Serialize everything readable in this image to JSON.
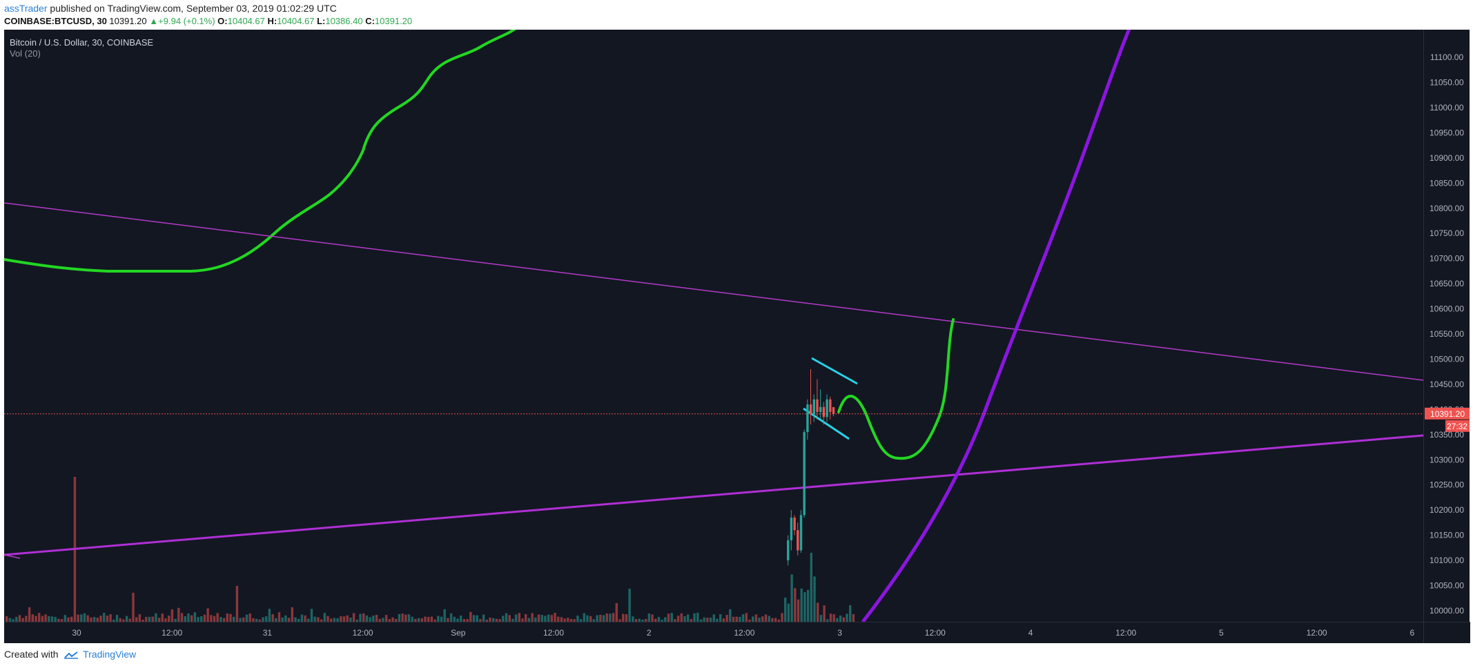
{
  "header": {
    "author": "assTrader",
    "published": "published on TradingView.com, September 03, 2019 01:02:29 UTC",
    "symbol": "COINBASE:BTCUSD, 30",
    "last": "10391.20",
    "change": "+9.94 (+0.1%)",
    "o_label": "O:",
    "o_value": "10404.67",
    "h_label": "H:",
    "h_value": "10404.67",
    "l_label": "L:",
    "l_value": "10386.40",
    "c_label": "C:",
    "c_value": "10391.20"
  },
  "legend": {
    "title": "Bitcoin / U.S. Dollar, 30, COINBASE",
    "volume": "Vol (20)"
  },
  "price_label": {
    "value": "10391.20",
    "countdown": "27:32"
  },
  "footer": {
    "created_with": "Created with",
    "brand": "TradingView"
  },
  "colors": {
    "background": "#131722",
    "up": "#26a69a",
    "down": "#ef5350",
    "green_drawing": "#22d722",
    "purple_line": "#b02fd6",
    "purple_thin": "#b53ac9",
    "violet_curve": "#8a16e0",
    "cyan_lines": "#27d3e8",
    "price_line": "#ef5350"
  },
  "chart_data": {
    "type": "candlestick",
    "title": "Bitcoin / U.S. Dollar, 30, COINBASE",
    "y_axis": {
      "ticks": [
        "11100.00",
        "11050.00",
        "11000.00",
        "10950.00",
        "10900.00",
        "10850.00",
        "10800.00",
        "10750.00",
        "10700.00",
        "10650.00",
        "10600.00",
        "10550.00",
        "10500.00",
        "10450.00",
        "10400.00",
        "10350.00",
        "10300.00",
        "10250.00",
        "10200.00",
        "10150.00",
        "10100.00",
        "10050.00",
        "10000.00"
      ],
      "range": [
        9978,
        11155
      ]
    },
    "x_axis": {
      "ticks": [
        "30",
        "12:00",
        "31",
        "12:00",
        "Sep",
        "12:00",
        "2",
        "12:00",
        "3",
        "12:00",
        "4",
        "12:00",
        "5",
        "12:00",
        "6"
      ]
    },
    "last_price": 10391.2,
    "candles": [
      {
        "o": 10100,
        "h": 10150,
        "l": 10090,
        "c": 10140
      },
      {
        "o": 10140,
        "h": 10200,
        "l": 10120,
        "c": 10185
      },
      {
        "o": 10185,
        "h": 10190,
        "l": 10150,
        "c": 10160
      },
      {
        "o": 10160,
        "h": 10175,
        "l": 10110,
        "c": 10120
      },
      {
        "o": 10120,
        "h": 10200,
        "l": 10115,
        "c": 10190
      },
      {
        "o": 10190,
        "h": 10360,
        "l": 10185,
        "c": 10355
      },
      {
        "o": 10355,
        "h": 10420,
        "l": 10340,
        "c": 10410
      },
      {
        "o": 10410,
        "h": 10480,
        "l": 10370,
        "c": 10390
      },
      {
        "o": 10390,
        "h": 10430,
        "l": 10375,
        "c": 10420
      },
      {
        "o": 10420,
        "h": 10460,
        "l": 10380,
        "c": 10395
      },
      {
        "o": 10395,
        "h": 10440,
        "l": 10380,
        "c": 10405
      },
      {
        "o": 10405,
        "h": 10415,
        "l": 10370,
        "c": 10385
      },
      {
        "o": 10385,
        "h": 10430,
        "l": 10375,
        "c": 10420
      },
      {
        "o": 10420,
        "h": 10425,
        "l": 10380,
        "c": 10395
      },
      {
        "o": 10404.67,
        "h": 10404.67,
        "l": 10386.4,
        "c": 10391.2
      }
    ]
  }
}
